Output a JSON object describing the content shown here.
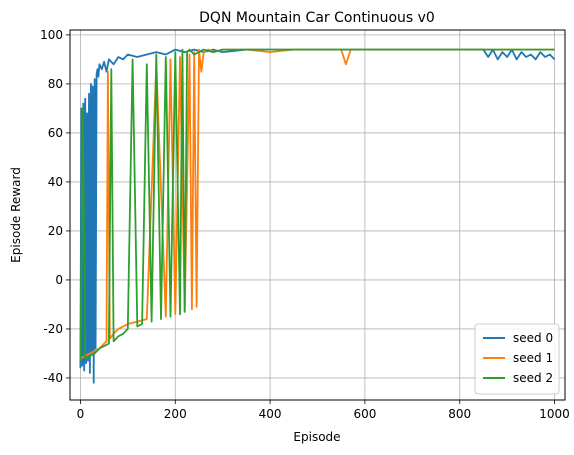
{
  "chart_data": {
    "type": "line",
    "title": "DQN Mountain Car Continuous v0",
    "xlabel": "Episode",
    "ylabel": "Episode Reward",
    "xlim": [
      -22,
      1022
    ],
    "ylim": [
      -49,
      102
    ],
    "xticks": [
      0,
      200,
      400,
      600,
      800,
      1000
    ],
    "yticks": [
      -40,
      -20,
      0,
      20,
      40,
      60,
      80,
      100
    ],
    "grid": true,
    "legend_position": "lower-right",
    "series": [
      {
        "name": "seed 0",
        "color": "#1f77b4",
        "x": [
          0,
          2,
          4,
          6,
          8,
          10,
          12,
          14,
          16,
          18,
          20,
          22,
          24,
          26,
          28,
          30,
          32,
          34,
          36,
          38,
          40,
          45,
          50,
          55,
          60,
          70,
          80,
          90,
          100,
          120,
          140,
          160,
          180,
          200,
          220,
          240,
          260,
          280,
          300,
          350,
          400,
          450,
          500,
          550,
          600,
          650,
          700,
          750,
          800,
          850,
          860,
          870,
          880,
          890,
          900,
          910,
          920,
          930,
          940,
          950,
          960,
          970,
          980,
          990,
          1000
        ],
        "y": [
          -36,
          70,
          -35,
          72,
          -37,
          74,
          -34,
          68,
          -33,
          76,
          -38,
          80,
          -30,
          79,
          -42,
          82,
          -28,
          84,
          86,
          83,
          88,
          86,
          89,
          85,
          90,
          88,
          91,
          90,
          92,
          91,
          92,
          93,
          92,
          94,
          93,
          94,
          93,
          94,
          93,
          94,
          94,
          94,
          94,
          94,
          94,
          94,
          94,
          94,
          94,
          94,
          91,
          94,
          90,
          93,
          91,
          94,
          90,
          93,
          91,
          92,
          90,
          93,
          91,
          92,
          90
        ]
      },
      {
        "name": "seed 1",
        "color": "#ff7f0e",
        "x": [
          0,
          10,
          20,
          30,
          40,
          50,
          55,
          58,
          62,
          70,
          80,
          100,
          120,
          140,
          160,
          180,
          190,
          200,
          210,
          220,
          230,
          235,
          240,
          245,
          250,
          255,
          260,
          270,
          280,
          300,
          350,
          400,
          450,
          500,
          550,
          560,
          570,
          600,
          650,
          700,
          750,
          800,
          850,
          900,
          950,
          1000
        ],
        "y": [
          -32,
          -31,
          -30,
          -29,
          -28,
          -26,
          -25,
          85,
          -24,
          -22,
          -20,
          -18,
          -17,
          -16,
          88,
          -15,
          90,
          -14,
          91,
          -13,
          92,
          -12,
          93,
          -11,
          94,
          85,
          93,
          94,
          93,
          94,
          94,
          93,
          94,
          94,
          94,
          88,
          94,
          94,
          94,
          94,
          94,
          94,
          94,
          94,
          94,
          94
        ]
      },
      {
        "name": "seed 2",
        "color": "#2ca02c",
        "x": [
          0,
          5,
          10,
          20,
          30,
          40,
          50,
          60,
          65,
          70,
          80,
          90,
          100,
          110,
          120,
          130,
          140,
          150,
          160,
          170,
          180,
          190,
          200,
          210,
          215,
          220,
          225,
          230,
          240,
          250,
          260,
          280,
          300,
          350,
          400,
          450,
          500,
          550,
          600,
          650,
          700,
          750,
          800,
          850,
          900,
          950,
          1000
        ],
        "y": [
          -33,
          70,
          -32,
          -31,
          -30,
          -28,
          -27,
          -26,
          86,
          -25,
          -23,
          -22,
          -20,
          90,
          -19,
          -18,
          88,
          -17,
          92,
          -16,
          91,
          -15,
          93,
          -14,
          94,
          -13,
          93,
          94,
          92,
          93,
          94,
          93,
          94,
          94,
          94,
          94,
          94,
          94,
          94,
          94,
          94,
          94,
          94,
          94,
          94,
          94,
          94
        ]
      }
    ]
  }
}
